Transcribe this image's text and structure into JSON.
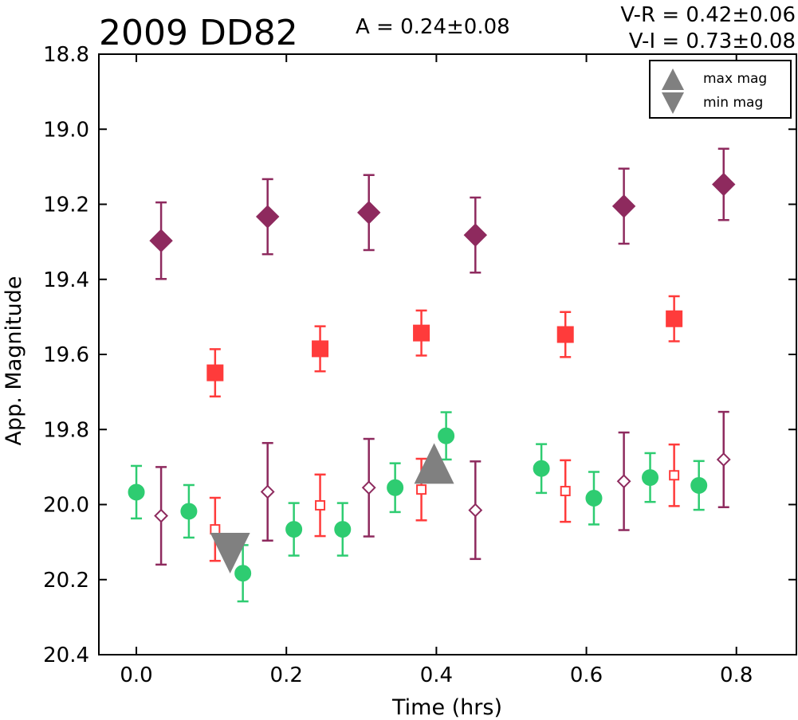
{
  "chart_data": {
    "type": "scatter",
    "title": "2009 DD82",
    "annotations": {
      "amplitude": "A  = 0.24±0.08",
      "vr": "V-R = 0.42±0.06",
      "vi": "V-I  = 0.73±0.08"
    },
    "xlabel": "Time (hrs)",
    "ylabel": "App. Magnitude",
    "xlim": [
      -0.05,
      0.88
    ],
    "ylim": [
      20.4,
      18.8
    ],
    "y_inverted": true,
    "x_ticks": [
      "0.0",
      "0.2",
      "0.4",
      "0.6",
      "0.8"
    ],
    "x_tick_values": [
      0.0,
      0.2,
      0.4,
      0.6,
      0.8
    ],
    "y_ticks": [
      "18.8",
      "19.0",
      "19.2",
      "19.4",
      "19.6",
      "19.8",
      "20.0",
      "20.2",
      "20.4"
    ],
    "y_tick_values": [
      18.8,
      19.0,
      19.2,
      19.4,
      19.6,
      19.8,
      20.0,
      20.2,
      20.4
    ],
    "grid": false,
    "legend_position": "top-right",
    "legend": [
      {
        "label": "max mag",
        "marker": "triangle-up",
        "color": "#808080"
      },
      {
        "label": "min mag",
        "marker": "triangle-down",
        "color": "#808080"
      }
    ],
    "series": [
      {
        "marker": "circle",
        "color": "#2ecc71",
        "filled": true,
        "points": [
          {
            "x": 0.0,
            "y": 19.967,
            "err": 0.07
          },
          {
            "x": 0.07,
            "y": 20.018,
            "err": 0.07
          },
          {
            "x": 0.142,
            "y": 20.183,
            "err": 0.075
          },
          {
            "x": 0.21,
            "y": 20.066,
            "err": 0.07
          },
          {
            "x": 0.275,
            "y": 20.066,
            "err": 0.07
          },
          {
            "x": 0.345,
            "y": 19.955,
            "err": 0.065
          },
          {
            "x": 0.413,
            "y": 19.817,
            "err": 0.063
          },
          {
            "x": 0.54,
            "y": 19.904,
            "err": 0.065
          },
          {
            "x": 0.61,
            "y": 19.983,
            "err": 0.07
          },
          {
            "x": 0.685,
            "y": 19.928,
            "err": 0.065
          },
          {
            "x": 0.75,
            "y": 19.949,
            "err": 0.065
          }
        ]
      },
      {
        "marker": "square",
        "color": "#ff3b3b",
        "filled": true,
        "points": [
          {
            "x": 0.105,
            "y": 19.649,
            "err": 0.063
          },
          {
            "x": 0.245,
            "y": 19.585,
            "err": 0.06
          },
          {
            "x": 0.38,
            "y": 19.543,
            "err": 0.06
          },
          {
            "x": 0.572,
            "y": 19.547,
            "err": 0.06
          },
          {
            "x": 0.717,
            "y": 19.505,
            "err": 0.06
          }
        ]
      },
      {
        "marker": "square",
        "color": "#ff3b3b",
        "filled": false,
        "points": [
          {
            "x": 0.105,
            "y": 20.066,
            "err": 0.084
          },
          {
            "x": 0.245,
            "y": 20.002,
            "err": 0.082
          },
          {
            "x": 0.38,
            "y": 19.96,
            "err": 0.082
          },
          {
            "x": 0.572,
            "y": 19.964,
            "err": 0.082
          },
          {
            "x": 0.717,
            "y": 19.922,
            "err": 0.082
          }
        ]
      },
      {
        "marker": "diamond",
        "color": "#8e2a5e",
        "filled": true,
        "points": [
          {
            "x": 0.033,
            "y": 19.297,
            "err": 0.102
          },
          {
            "x": 0.175,
            "y": 19.233,
            "err": 0.1
          },
          {
            "x": 0.31,
            "y": 19.222,
            "err": 0.1
          },
          {
            "x": 0.452,
            "y": 19.282,
            "err": 0.1
          },
          {
            "x": 0.65,
            "y": 19.205,
            "err": 0.1
          },
          {
            "x": 0.783,
            "y": 19.147,
            "err": 0.095
          }
        ]
      },
      {
        "marker": "diamond",
        "color": "#8e2a5e",
        "filled": false,
        "points": [
          {
            "x": 0.033,
            "y": 20.03,
            "err": 0.13
          },
          {
            "x": 0.175,
            "y": 19.966,
            "err": 0.13
          },
          {
            "x": 0.31,
            "y": 19.955,
            "err": 0.13
          },
          {
            "x": 0.452,
            "y": 20.015,
            "err": 0.13
          },
          {
            "x": 0.65,
            "y": 19.938,
            "err": 0.13
          },
          {
            "x": 0.783,
            "y": 19.88,
            "err": 0.127
          }
        ]
      },
      {
        "marker": "triangle-up",
        "color": "#808080",
        "filled": true,
        "points": [
          {
            "x": 0.397,
            "y": 19.9
          }
        ]
      },
      {
        "marker": "triangle-down",
        "color": "#808080",
        "filled": true,
        "points": [
          {
            "x": 0.125,
            "y": 20.12
          }
        ]
      }
    ]
  }
}
